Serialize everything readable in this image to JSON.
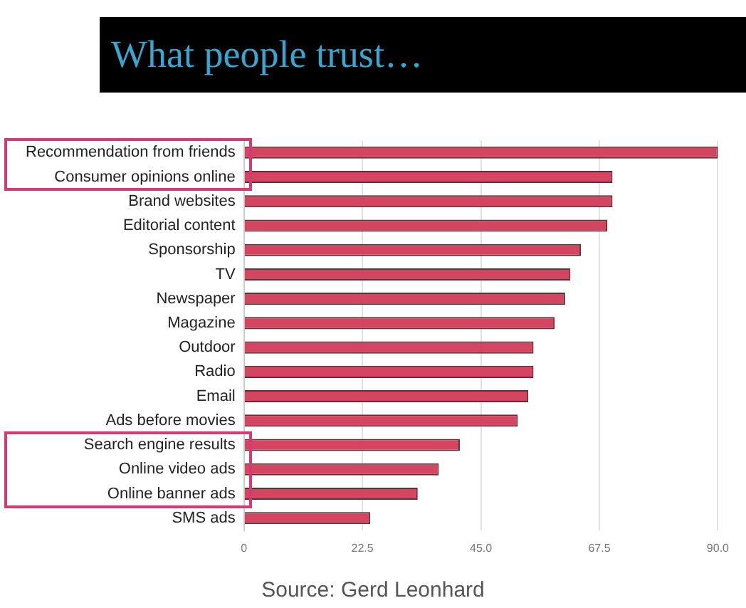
{
  "chart_data": {
    "type": "bar",
    "orientation": "horizontal",
    "title": "What people trust…",
    "categories": [
      "Recommendation from friends",
      "Consumer opinions online",
      "Brand websites",
      "Editorial content",
      "Sponsorship",
      "TV",
      "Newspaper",
      "Magazine",
      "Outdoor",
      "Radio",
      "Email",
      "Ads before movies",
      "Search engine results",
      "Online video ads",
      "Online banner ads",
      "SMS ads"
    ],
    "values": [
      90,
      70,
      70,
      69,
      64,
      62,
      61,
      59,
      55,
      55,
      54,
      52,
      41,
      37,
      33,
      24
    ],
    "color": "#d4465f",
    "xlim": [
      0,
      90
    ],
    "xticks": [
      0,
      22.5,
      {
        "value": 45,
        "label": "45.0"
      },
      {
        "value": 67.5,
        "label": "67.5"
      },
      {
        "value": 90,
        "label": "90.0"
      }
    ],
    "grid": "x",
    "annotations": [
      "Source: Gerd Leonhard"
    ]
  }
}
